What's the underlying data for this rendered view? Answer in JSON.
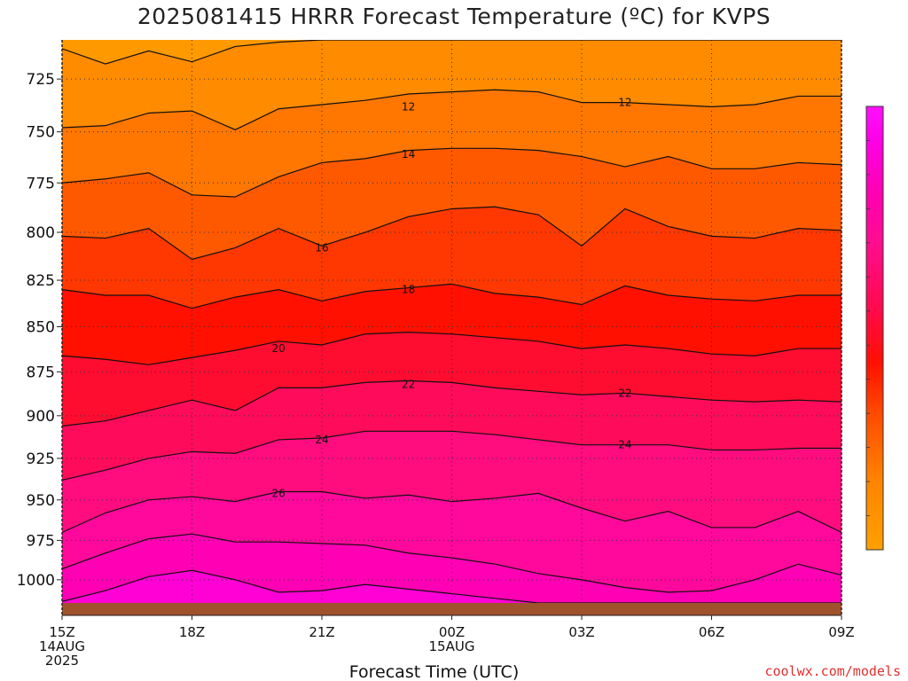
{
  "title": "2025081415 HRRR Forecast Temperature (ºC) for KVPS",
  "xlabel": "Forecast Time (UTC)",
  "credit": "coolwx.com/models",
  "chart_data": {
    "type": "heatmap",
    "title": "2025081415 HRRR Forecast Temperature (ºC) for KVPS",
    "xlabel": "Forecast Time (UTC)",
    "ylabel": "",
    "x_hours": [
      0,
      1,
      2,
      3,
      4,
      5,
      6,
      7,
      8,
      9,
      10,
      11,
      12,
      13,
      14,
      15,
      16,
      17,
      18
    ],
    "x_ticks": [
      {
        "hour": 0,
        "lines": [
          "15Z",
          "14AUG",
          "2025"
        ]
      },
      {
        "hour": 3,
        "lines": [
          "18Z"
        ]
      },
      {
        "hour": 6,
        "lines": [
          "21Z"
        ]
      },
      {
        "hour": 9,
        "lines": [
          "00Z",
          "15AUG"
        ]
      },
      {
        "hour": 12,
        "lines": [
          "03Z"
        ]
      },
      {
        "hour": 15,
        "lines": [
          "06Z"
        ]
      },
      {
        "hour": 18,
        "lines": [
          "09Z"
        ]
      }
    ],
    "xlim": [
      0,
      18
    ],
    "y_ticks": [
      725,
      750,
      775,
      800,
      825,
      850,
      875,
      900,
      925,
      950,
      975,
      1000
    ],
    "ylim": [
      1015,
      707
    ],
    "y_scale": "log-pressure",
    "grid": "dotted",
    "contour_interval": 2,
    "colorbar": {
      "ticks": [
        10,
        12,
        14,
        16,
        18,
        20,
        22,
        24,
        26,
        28,
        30,
        32
      ],
      "range": [
        8,
        34
      ],
      "placement": "right",
      "stops": [
        {
          "v": 8,
          "color": "#ffa000"
        },
        {
          "v": 12,
          "color": "#ff8400"
        },
        {
          "v": 16,
          "color": "#ff4a00"
        },
        {
          "v": 19,
          "color": "#ff1000"
        },
        {
          "v": 22,
          "color": "#ff0a4a"
        },
        {
          "v": 26,
          "color": "#ff0c90"
        },
        {
          "v": 29,
          "color": "#ff00b4"
        },
        {
          "v": 32,
          "color": "#ff00e6"
        },
        {
          "v": 34,
          "color": "#ff10ff"
        }
      ]
    },
    "isotherms": [
      {
        "value": 10,
        "pressure": [
          711,
          718,
          712,
          717,
          710,
          708,
          707,
          707,
          707,
          707,
          707,
          707,
          707,
          707,
          707,
          707,
          707,
          707,
          707
        ]
      },
      {
        "value": 12,
        "pressure": [
          748,
          747,
          741,
          740,
          749,
          739,
          737,
          735,
          732,
          731,
          730,
          731,
          736,
          736,
          737,
          738,
          737,
          733,
          733
        ]
      },
      {
        "value": 14,
        "pressure": [
          775,
          773,
          770,
          781,
          782,
          772,
          765,
          763,
          759,
          758,
          758,
          759,
          762,
          767,
          762,
          768,
          768,
          765,
          766
        ]
      },
      {
        "value": 16,
        "pressure": [
          802,
          803,
          798,
          814,
          808,
          798,
          807,
          800,
          792,
          788,
          787,
          791,
          807,
          788,
          797,
          802,
          803,
          798,
          799
        ]
      },
      {
        "value": 18,
        "pressure": [
          830,
          833,
          833,
          840,
          834,
          830,
          836,
          831,
          829,
          827,
          832,
          834,
          838,
          828,
          833,
          835,
          836,
          833,
          833
        ]
      },
      {
        "value": 20,
        "pressure": [
          866,
          868,
          871,
          867,
          863,
          858,
          860,
          854,
          853,
          854,
          856,
          858,
          862,
          860,
          862,
          865,
          866,
          862,
          862
        ]
      },
      {
        "value": 22,
        "pressure": [
          906,
          903,
          897,
          891,
          897,
          884,
          884,
          881,
          880,
          881,
          884,
          886,
          888,
          887,
          889,
          891,
          892,
          891,
          892
        ]
      },
      {
        "value": 24,
        "pressure": [
          938,
          932,
          925,
          921,
          922,
          914,
          913,
          909,
          909,
          909,
          911,
          914,
          917,
          917,
          917,
          920,
          920,
          919,
          919
        ]
      },
      {
        "value": 26,
        "pressure": [
          970,
          958,
          950,
          948,
          951,
          945,
          945,
          949,
          947,
          951,
          949,
          946,
          955,
          963,
          957,
          967,
          967,
          957,
          970
        ]
      },
      {
        "value": 28,
        "pressure": [
          993,
          983,
          974,
          971,
          976,
          976,
          977,
          978,
          983,
          986,
          990,
          996,
          1000,
          1005,
          1008,
          1007,
          1000,
          990,
          997
        ]
      },
      {
        "value": 30,
        "pressure": [
          1014,
          1007,
          998,
          994,
          1000,
          1008,
          1007,
          1003,
          1006,
          1009,
          1012,
          1015,
          1015,
          1015,
          1015,
          1015,
          1015,
          1015,
          1015
        ]
      }
    ],
    "contour_labels": [
      {
        "text": "12",
        "hour": 8.0,
        "p": 738
      },
      {
        "text": "12",
        "hour": 13.0,
        "p": 736
      },
      {
        "text": "14",
        "hour": 8.0,
        "p": 761
      },
      {
        "text": "16",
        "hour": 6.0,
        "p": 808
      },
      {
        "text": "18",
        "hour": 8.0,
        "p": 830
      },
      {
        "text": "20",
        "hour": 5.0,
        "p": 862
      },
      {
        "text": "22",
        "hour": 8.0,
        "p": 882
      },
      {
        "text": "22",
        "hour": 13.0,
        "p": 887
      },
      {
        "text": "24",
        "hour": 6.0,
        "p": 914
      },
      {
        "text": "24",
        "hour": 13.0,
        "p": 917
      },
      {
        "text": "26",
        "hour": 5.0,
        "p": 946
      }
    ]
  }
}
